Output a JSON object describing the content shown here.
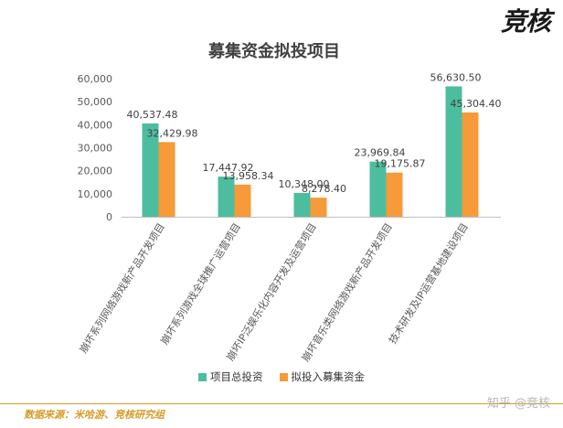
{
  "brand": {
    "logo_text": "竞核"
  },
  "source": {
    "text": "数据来源：米哈游、竞核研究组"
  },
  "watermark": {
    "text": "知乎 @竞核"
  },
  "colors": {
    "series1": "#4dbd9f",
    "series2": "#f69a3a",
    "accent": "#d49d2a",
    "axis": "#595959",
    "grid": "#d9d9d9"
  },
  "chart_data": {
    "type": "bar",
    "title": "募集资金拟投项目",
    "categories": [
      "崩坏系列网络游戏新产品开发项目",
      "崩坏系列游戏全球推广运营项目",
      "崩坏IP泛娱乐化内容开发及运营项目",
      "崩坏音乐类网络游戏新产品开发项目",
      "技术研发及IP运营基地建设项目"
    ],
    "series": [
      {
        "name": "项目总投资",
        "values": [
          40537.48,
          17447.92,
          10348.0,
          23969.84,
          56630.5
        ]
      },
      {
        "name": "拟投入募集资金",
        "values": [
          32429.98,
          13958.34,
          8278.4,
          19175.87,
          45304.4
        ]
      }
    ],
    "data_labels": [
      [
        "40,537.48",
        "17,447.92",
        "10,348.00",
        "23,969.84",
        "56,630.50"
      ],
      [
        "32,429.98",
        "13,958.34",
        "8,278.40",
        "19,175.87",
        "45,304.40"
      ]
    ],
    "y_ticks": [
      "0",
      "10,000",
      "20,000",
      "30,000",
      "40,000",
      "50,000",
      "60,000"
    ],
    "ylim": [
      0,
      60000
    ],
    "grid": false,
    "legend_position": "bottom"
  }
}
